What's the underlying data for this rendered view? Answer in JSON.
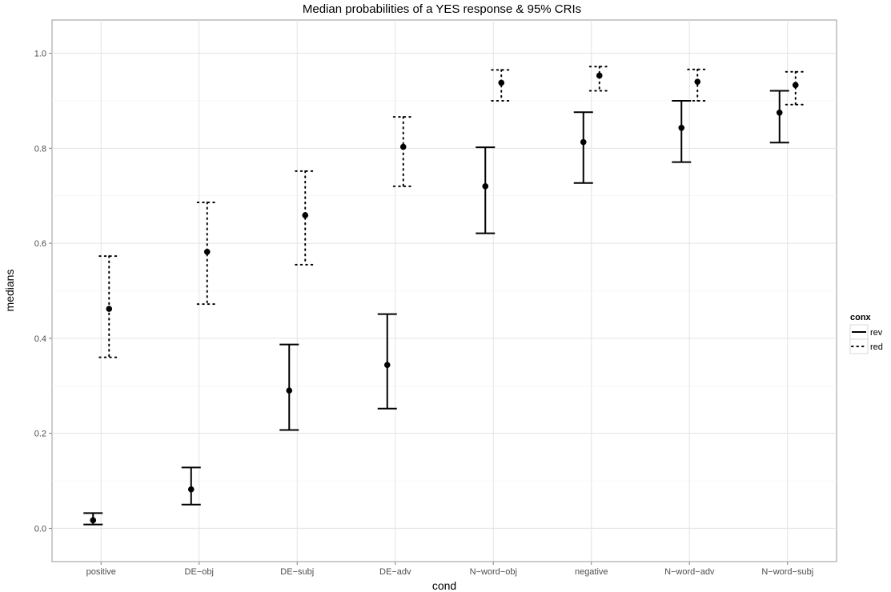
{
  "chart_data": {
    "type": "errorbar",
    "title": "Median probabilities of a YES response & 95% CRIs",
    "xlabel": "cond",
    "ylabel": "medians",
    "ylim": [
      -0.07,
      1.07
    ],
    "yticks": [
      0.0,
      0.2,
      0.4,
      0.6,
      0.8,
      1.0
    ],
    "ytick_labels": [
      "0.0",
      "0.2",
      "0.4",
      "0.6",
      "0.8",
      "1.0"
    ],
    "categories": [
      "positive",
      "DE−obj",
      "DE−subj",
      "DE−adv",
      "N−word−obj",
      "negative",
      "N−word−adv",
      "N−word−subj"
    ],
    "grid": true,
    "legend": {
      "title": "conx",
      "position": "right",
      "entries": [
        {
          "name": "rev",
          "linestyle": "solid"
        },
        {
          "name": "red",
          "linestyle": "dotted"
        }
      ]
    },
    "series": [
      {
        "name": "rev",
        "linestyle": "solid",
        "median": [
          0.017,
          0.082,
          0.29,
          0.344,
          0.72,
          0.813,
          0.843,
          0.875
        ],
        "lower": [
          0.008,
          0.05,
          0.207,
          0.252,
          0.621,
          0.727,
          0.771,
          0.812
        ],
        "upper": [
          0.032,
          0.128,
          0.387,
          0.451,
          0.802,
          0.876,
          0.9,
          0.921
        ]
      },
      {
        "name": "red",
        "linestyle": "dotted",
        "median": [
          0.462,
          0.582,
          0.659,
          0.803,
          0.938,
          0.953,
          0.94,
          0.933
        ],
        "lower": [
          0.36,
          0.472,
          0.555,
          0.72,
          0.9,
          0.921,
          0.9,
          0.892
        ],
        "upper": [
          0.573,
          0.686,
          0.752,
          0.866,
          0.965,
          0.972,
          0.966,
          0.961
        ]
      }
    ]
  }
}
